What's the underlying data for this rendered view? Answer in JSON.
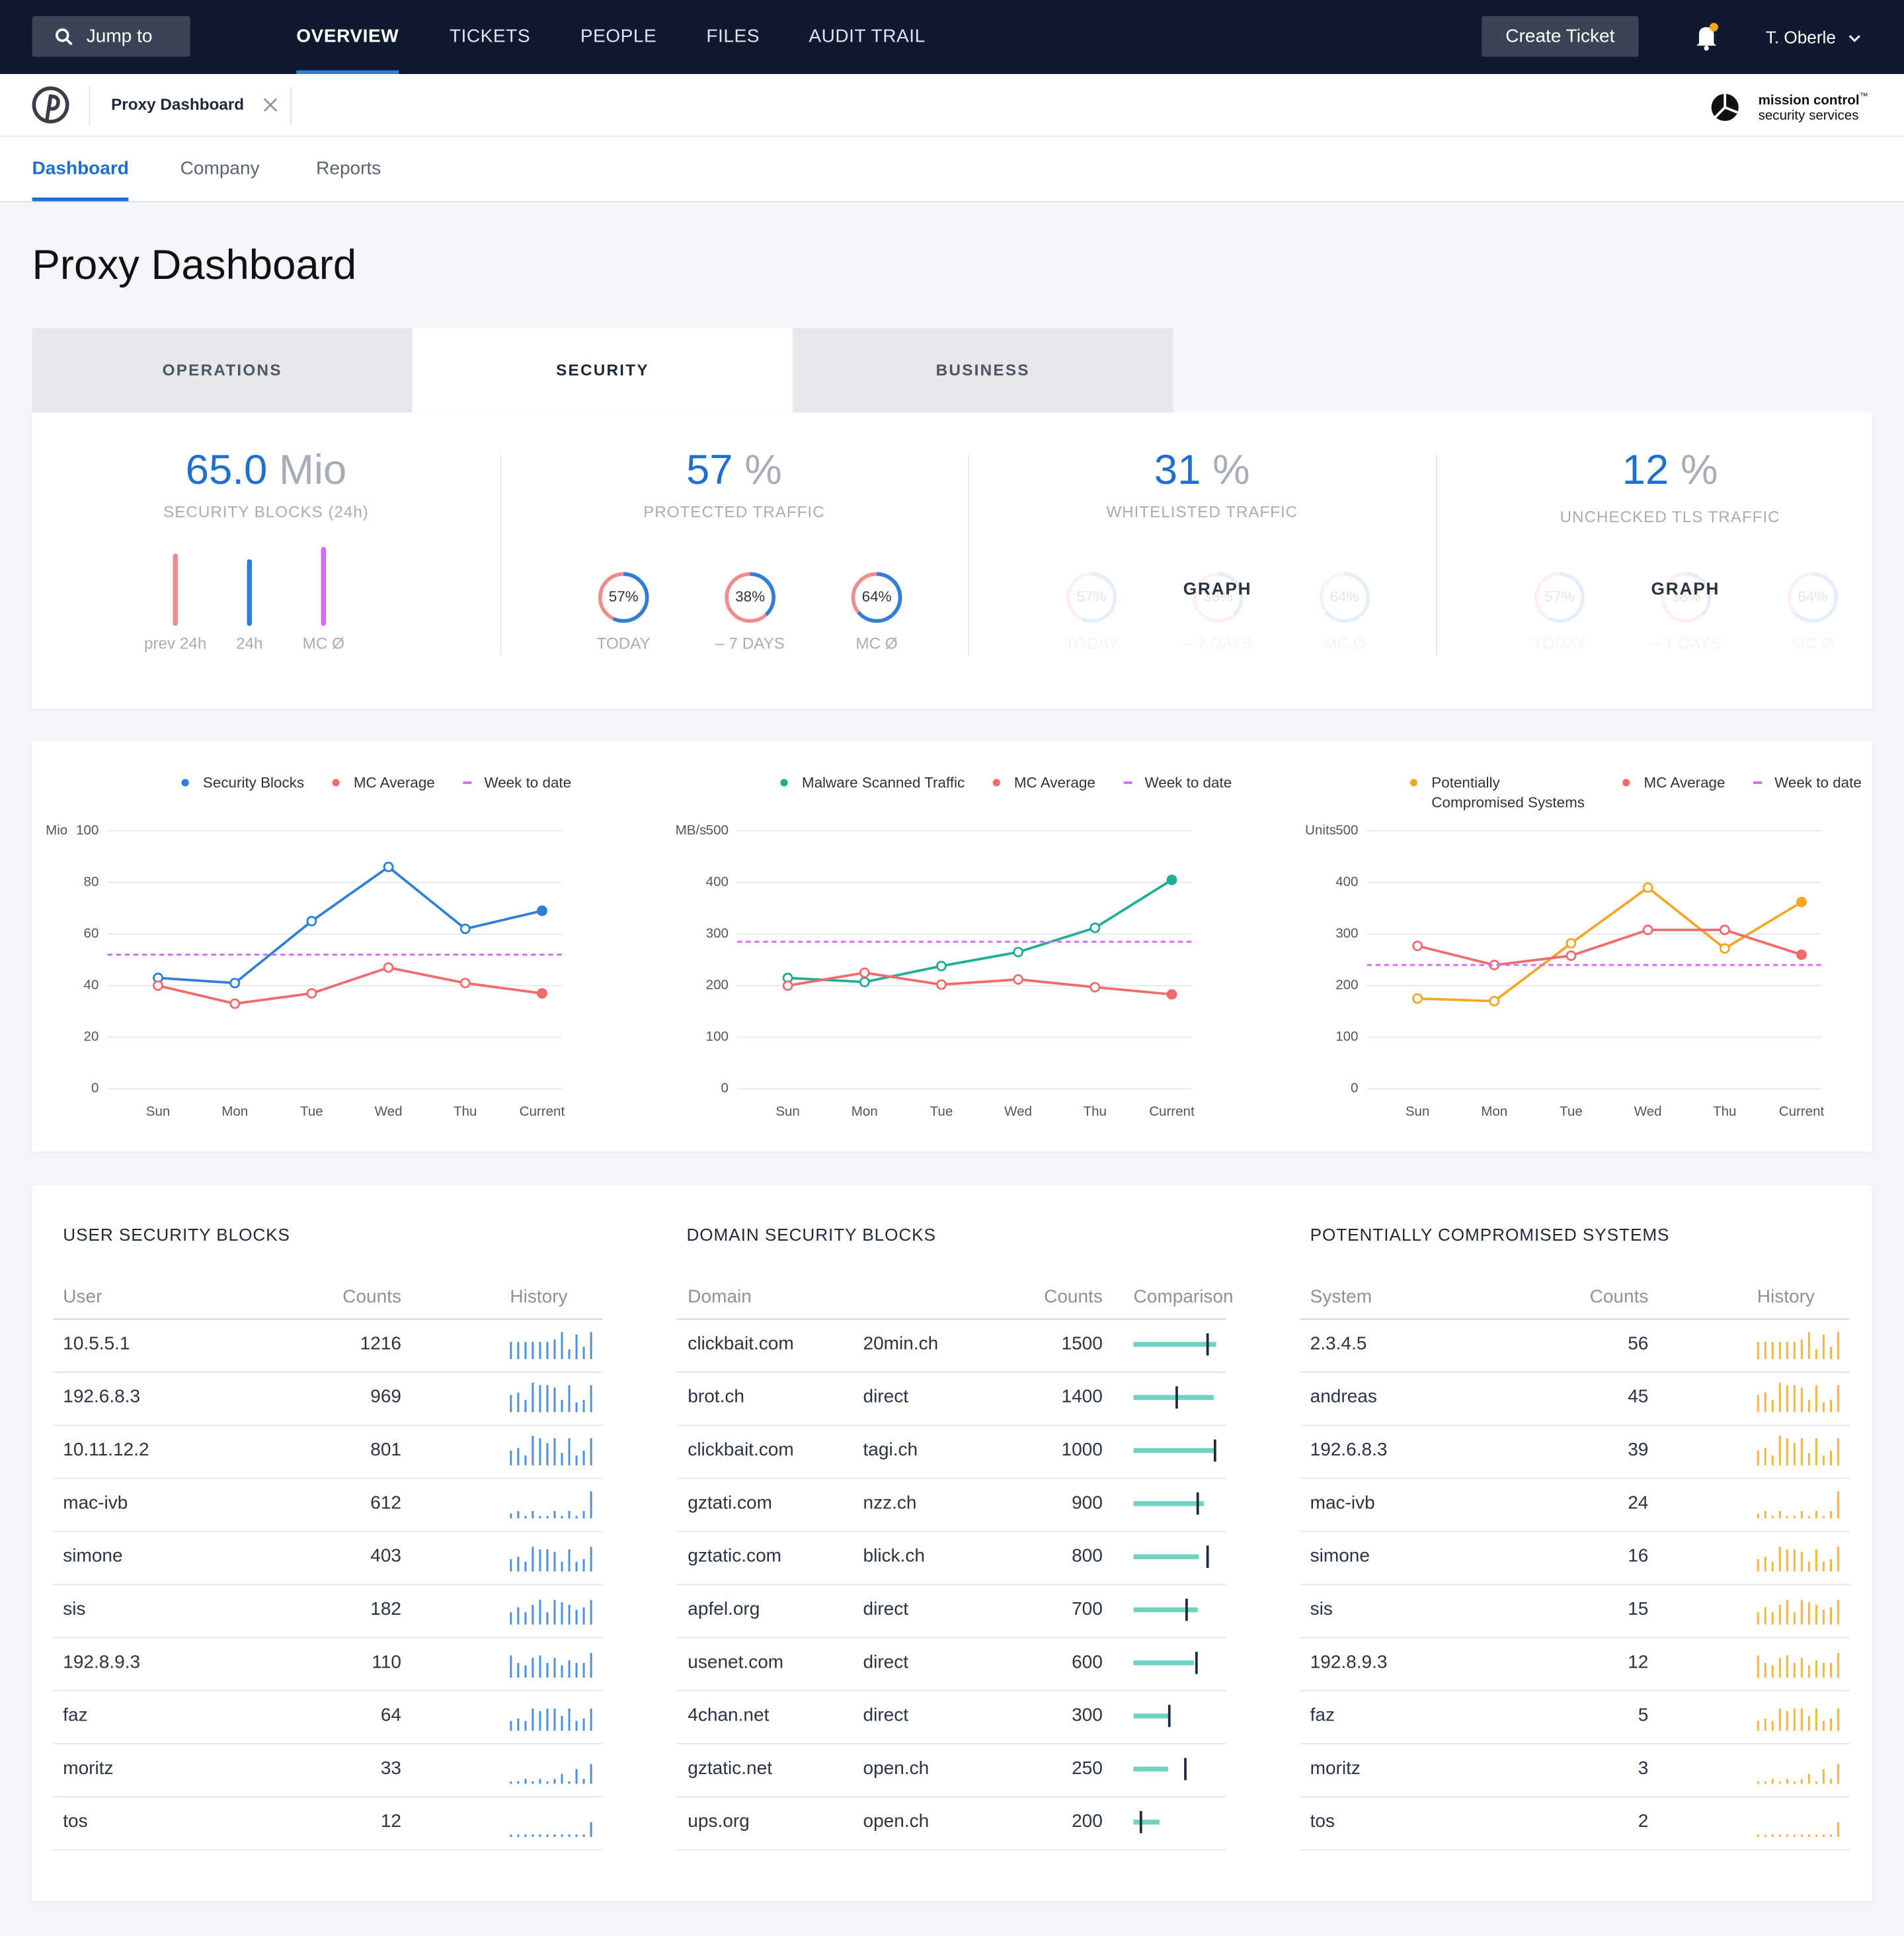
{
  "nav": {
    "search": "Jump to",
    "items": [
      "OVERVIEW",
      "TICKETS",
      "PEOPLE",
      "FILES",
      "AUDIT TRAIL"
    ],
    "button": "Create Ticket",
    "user": "T. Oberle"
  },
  "workspace": {
    "tab": "Proxy Dashboard",
    "brand": "mission control",
    "brand_tm": "™",
    "brand_sub": "security services"
  },
  "subnav": [
    "Dashboard",
    "Company",
    "Reports"
  ],
  "title": "Proxy Dashboard",
  "tabs": [
    "OPERATIONS",
    "SECURITY",
    "BUSINESS"
  ],
  "kpis": [
    {
      "value": 65,
      "label": "65.0",
      "unit": "Mio",
      "caption": "SECURITY BLOCKS (24h)",
      "bars": [
        {
          "name": "prev 24h",
          "value": 71,
          "color": "#f28b8b"
        },
        {
          "name": "24h",
          "value": 65,
          "color": "#2f7fd9"
        },
        {
          "name": "MC Ø",
          "value": 78,
          "color": "#d56bf0"
        }
      ]
    },
    {
      "value": 57,
      "unit": "%",
      "caption": "PROTECTED TRAFFIC",
      "gauges": [
        {
          "name": "TODAY",
          "value": 57,
          "label": "57%"
        },
        {
          "name": "– 7 DAYS",
          "value": 38,
          "label": "38%"
        },
        {
          "name": "MC Ø",
          "value": 64,
          "label": "64%"
        }
      ]
    },
    {
      "value": 31,
      "unit": "%",
      "caption": "WHITELISTED TRAFFIC",
      "faded": true,
      "overlay": "GRAPH",
      "gauges": [
        {
          "name": "TODAY",
          "value": 57,
          "label": "57%"
        },
        {
          "name": "– 7 DAYS",
          "value": 38,
          "label": "38%"
        },
        {
          "name": "MC Ø",
          "value": 64,
          "label": "64%"
        }
      ]
    },
    {
      "value": 12,
      "unit": "%",
      "caption": "UNCHECKED TLS TRAFFIC",
      "faded": true,
      "overlay": "GRAPH",
      "gauges": [
        {
          "name": "TODAY",
          "value": 57,
          "label": "57%"
        },
        {
          "name": "– 7 DAYS",
          "value": 38,
          "label": "38%"
        },
        {
          "name": "MC Ø",
          "value": 64,
          "label": "64%"
        }
      ]
    }
  ],
  "chart_data": [
    {
      "type": "line",
      "ylabel": "Mio",
      "categories": [
        "Sun",
        "Mon",
        "Tue",
        "Wed",
        "Thu",
        "Current"
      ],
      "ylim": [
        0,
        100
      ],
      "yticks": [
        0,
        20,
        40,
        60,
        80,
        100
      ],
      "grid": true,
      "series": [
        {
          "name": "Security Blocks",
          "color": "#2f7fd9",
          "values": [
            43,
            41,
            65,
            86,
            62,
            69
          ]
        },
        {
          "name": "MC Average",
          "color": "#f06b6b",
          "values": [
            40,
            33,
            37,
            47,
            41,
            37
          ]
        },
        {
          "name": "Week to date",
          "color": "#d56bf0",
          "style": "dashed",
          "value": 52
        }
      ]
    },
    {
      "type": "line",
      "ylabel": "MB/s",
      "categories": [
        "Sun",
        "Mon",
        "Tue",
        "Wed",
        "Thu",
        "Current"
      ],
      "ylim": [
        0,
        500
      ],
      "yticks": [
        0,
        100,
        200,
        300,
        400,
        500
      ],
      "grid": true,
      "series": [
        {
          "name": "Malware Scanned Traffic",
          "color": "#1fae93",
          "values": [
            215,
            207,
            238,
            265,
            312,
            405
          ]
        },
        {
          "name": "MC Average",
          "color": "#f06b6b",
          "values": [
            200,
            225,
            202,
            212,
            197,
            183
          ]
        },
        {
          "name": "Week to date",
          "color": "#d56bf0",
          "style": "dashed",
          "value": 285
        }
      ]
    },
    {
      "type": "line",
      "ylabel": "Units",
      "categories": [
        "Sun",
        "Mon",
        "Tue",
        "Wed",
        "Thu",
        "Current"
      ],
      "ylim": [
        0,
        500
      ],
      "yticks": [
        0,
        100,
        200,
        300,
        400,
        500
      ],
      "grid": true,
      "series": [
        {
          "name": "Potentially Compromised Systems",
          "color": "#f5a623",
          "values": [
            175,
            170,
            282,
            390,
            272,
            362
          ]
        },
        {
          "name": "MC Average",
          "color": "#f06b6b",
          "values": [
            277,
            240,
            258,
            308,
            308,
            260
          ]
        },
        {
          "name": "Week to date",
          "color": "#d56bf0",
          "style": "dashed",
          "value": 240
        }
      ]
    }
  ],
  "tables": [
    {
      "title": "USER SECURITY BLOCKS",
      "headers": [
        "User",
        "Counts",
        "History"
      ],
      "color": "#4a90e2",
      "rows": [
        [
          "10.5.5.1",
          1216,
          [
            7,
            7,
            7,
            7,
            7,
            7,
            8,
            11,
            4,
            10,
            5,
            11
          ]
        ],
        [
          "192.6.8.3",
          969,
          [
            7,
            8,
            5,
            12,
            11,
            11,
            10,
            5,
            11,
            4,
            5,
            11
          ]
        ],
        [
          "10.11.12.2",
          801,
          [
            6,
            7,
            4,
            12,
            11,
            9,
            11,
            5,
            11,
            4,
            6,
            11
          ]
        ],
        [
          "mac-ivb",
          612,
          [
            2,
            3,
            1,
            3,
            1,
            1,
            3,
            1,
            3,
            1,
            3,
            11
          ]
        ],
        [
          "simone",
          403,
          [
            5,
            6,
            4,
            10,
            9,
            9,
            8,
            4,
            9,
            4,
            5,
            10
          ]
        ],
        [
          "sis",
          182,
          [
            5,
            7,
            5,
            8,
            10,
            5,
            10,
            9,
            8,
            6,
            7,
            10
          ]
        ],
        [
          "192.8.9.3",
          110,
          [
            9,
            6,
            5,
            8,
            9,
            6,
            8,
            5,
            7,
            6,
            6,
            10
          ]
        ],
        [
          "faz",
          64,
          [
            4,
            5,
            4,
            9,
            8,
            9,
            9,
            6,
            9,
            4,
            5,
            9
          ]
        ],
        [
          "moritz",
          33,
          [
            1,
            1,
            2,
            1,
            2,
            1,
            2,
            4,
            1,
            6,
            2,
            8
          ]
        ],
        [
          "tos",
          12,
          [
            1,
            1,
            1,
            1,
            1,
            1,
            1,
            1,
            1,
            1,
            1,
            6
          ]
        ]
      ]
    },
    {
      "title": "DOMAIN SECURITY BLOCKS",
      "headers": [
        "Domain",
        "Counts",
        "Comparison"
      ],
      "color": "#6fd3c1",
      "marker": "#1e2a3a",
      "rows": [
        [
          "clickbait.com",
          "20min.ch",
          1500,
          [
            67,
            60
          ]
        ],
        [
          "brot.ch",
          "direct",
          1400,
          [
            65,
            35
          ]
        ],
        [
          "clickbait.com",
          "tagi.ch",
          1000,
          [
            65,
            66
          ]
        ],
        [
          "gztati.com",
          "nzz.ch",
          900,
          [
            57,
            52
          ]
        ],
        [
          "gztatic.com",
          "blick.ch",
          800,
          [
            53,
            60
          ]
        ],
        [
          "apfel.org",
          "direct",
          700,
          [
            52,
            43
          ]
        ],
        [
          "usenet.com",
          "direct",
          600,
          [
            49,
            51
          ]
        ],
        [
          "4chan.net",
          "direct",
          300,
          [
            30,
            29
          ]
        ],
        [
          "gztatic.net",
          "open.ch",
          250,
          [
            28,
            42
          ]
        ],
        [
          "ups.org",
          "open.ch",
          200,
          [
            21,
            6
          ]
        ]
      ]
    },
    {
      "title": "POTENTIALLY COMPROMISED SYSTEMS",
      "headers": [
        "System",
        "Counts",
        "History"
      ],
      "color": "#f5b342",
      "rows": [
        [
          "2.3.4.5",
          56,
          [
            7,
            7,
            7,
            7,
            7,
            7,
            8,
            11,
            4,
            10,
            5,
            11
          ]
        ],
        [
          "andreas",
          45,
          [
            7,
            8,
            5,
            12,
            11,
            11,
            10,
            5,
            11,
            4,
            5,
            11
          ]
        ],
        [
          "192.6.8.3",
          39,
          [
            6,
            7,
            4,
            12,
            11,
            9,
            11,
            5,
            11,
            4,
            6,
            11
          ]
        ],
        [
          "mac-ivb",
          24,
          [
            2,
            3,
            1,
            3,
            1,
            1,
            3,
            1,
            3,
            1,
            3,
            11
          ]
        ],
        [
          "simone",
          16,
          [
            5,
            6,
            4,
            10,
            9,
            9,
            8,
            4,
            9,
            4,
            5,
            10
          ]
        ],
        [
          "sis",
          15,
          [
            5,
            7,
            5,
            8,
            10,
            5,
            10,
            9,
            8,
            6,
            7,
            10
          ]
        ],
        [
          "192.8.9.3",
          12,
          [
            9,
            6,
            5,
            8,
            9,
            6,
            8,
            5,
            7,
            6,
            6,
            10
          ]
        ],
        [
          "faz",
          5,
          [
            4,
            5,
            4,
            9,
            8,
            9,
            9,
            6,
            9,
            4,
            5,
            9
          ]
        ],
        [
          "moritz",
          3,
          [
            1,
            1,
            2,
            1,
            2,
            1,
            2,
            4,
            1,
            6,
            2,
            8
          ]
        ],
        [
          "tos",
          2,
          [
            1,
            1,
            1,
            1,
            1,
            1,
            1,
            1,
            1,
            1,
            1,
            6
          ]
        ]
      ]
    }
  ]
}
